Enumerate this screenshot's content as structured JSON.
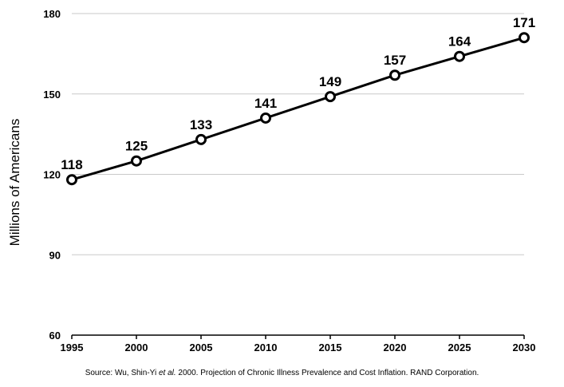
{
  "chart_data": {
    "type": "line",
    "x": [
      1995,
      2000,
      2005,
      2010,
      2015,
      2020,
      2025,
      2030
    ],
    "series": [
      {
        "values": [
          118,
          125,
          133,
          141,
          149,
          157,
          164,
          171
        ]
      }
    ],
    "ylabel": "Millions of Americans",
    "xlabel": "",
    "ylim": [
      60,
      180
    ],
    "yticks": [
      60,
      90,
      120,
      150,
      180
    ],
    "xticks": [
      1995,
      2000,
      2005,
      2010,
      2015,
      2020,
      2025,
      2030
    ],
    "grid": true,
    "colors": {
      "line": "#000000",
      "grid": "#c9c9c9",
      "marker_fill": "#ffffff"
    }
  },
  "source": {
    "prefix": "Source:  Wu, Shin-Yi ",
    "italic": "et al.",
    "suffix": " 2000.  Projection of Chronic Illness Prevalence and Cost Inflation.  RAND Corporation."
  }
}
